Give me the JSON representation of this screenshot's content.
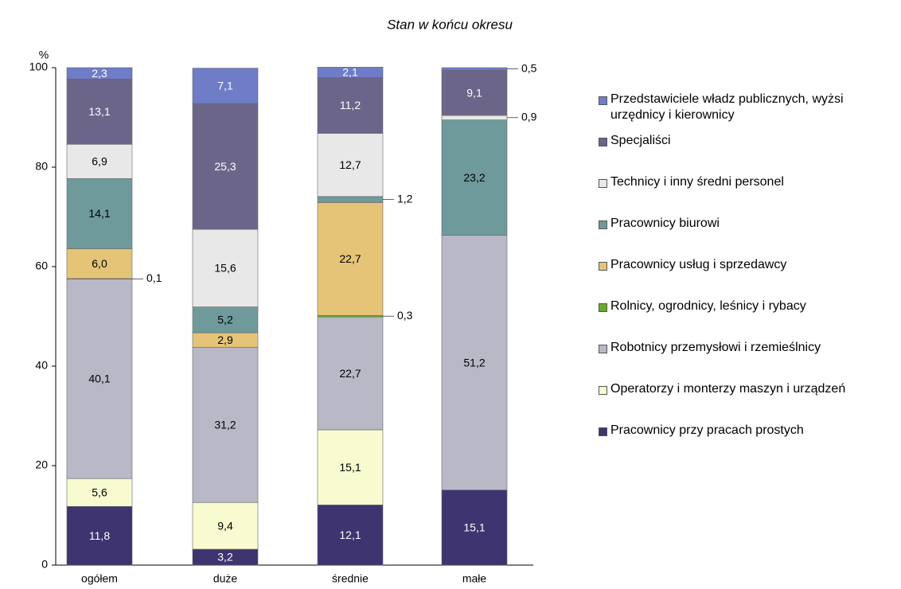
{
  "chart_data": {
    "type": "stacked_bar",
    "title": "Stan w końcu okresu",
    "y_label": "%",
    "categories": [
      "ogółem",
      "duże",
      "średnie",
      "małe"
    ],
    "ylim": [
      0,
      100
    ],
    "yticks": [
      0,
      20,
      40,
      60,
      80,
      100
    ],
    "series": [
      {
        "name": "Pracownicy przy pracach prostych",
        "color": "#3d3470",
        "values": [
          11.8,
          3.2,
          12.1,
          15.1
        ],
        "value_labels": [
          "11,8",
          "3,2",
          "12,1",
          "15,1"
        ]
      },
      {
        "name": "Operatorzy i monterzy maszyn i urządzeń",
        "color": "#f7fbcf",
        "values": [
          5.6,
          9.4,
          15.1,
          0
        ],
        "value_labels": [
          "5,6",
          "9,4",
          "15,1",
          null
        ]
      },
      {
        "name": "Robotnicy przemysłowi i rzemieślnicy",
        "color": "#b9b8c7",
        "values": [
          40.1,
          31.2,
          22.7,
          51.2
        ],
        "value_labels": [
          "40,1",
          "31,2",
          "22,7",
          "51,2"
        ]
      },
      {
        "name": "Rolnicy, ogrodnicy, leśnicy i rybacy",
        "color": "#6aaa2a",
        "values": [
          0.1,
          0,
          0.3,
          0
        ],
        "value_labels": [
          "0,1",
          null,
          "0,3",
          null
        ]
      },
      {
        "name": "Pracownicy usług i sprzedawcy",
        "color": "#e5c477",
        "values": [
          6.0,
          2.9,
          22.7,
          0
        ],
        "value_labels": [
          "6,0",
          "2,9",
          "22,7",
          null
        ]
      },
      {
        "name": "Pracownicy biurowi",
        "color": "#6f9a9b",
        "values": [
          14.1,
          5.2,
          1.2,
          23.2
        ],
        "value_labels": [
          "14,1",
          "5,2",
          "1,2",
          "23,2"
        ]
      },
      {
        "name": "Technicy i inny średni personel",
        "color": "#e8e8e8",
        "values": [
          6.9,
          15.6,
          12.7,
          0.9
        ],
        "value_labels": [
          "6,9",
          "15,6",
          "12,7",
          "0,9"
        ]
      },
      {
        "name": "Specjaliści",
        "color": "#6b6689",
        "values": [
          13.1,
          25.3,
          11.2,
          9.1
        ],
        "value_labels": [
          "13,1",
          "25,3",
          "11,2",
          "9,1"
        ]
      },
      {
        "name": "Przedstawiciele władz publicznych, wyżsi urzędnicy i kierownicy",
        "color": "#6f7cc8",
        "values": [
          2.3,
          7.1,
          2.1,
          0.5
        ],
        "value_labels": [
          "2,3",
          "7,1",
          "2,1",
          "0,5"
        ]
      }
    ]
  }
}
